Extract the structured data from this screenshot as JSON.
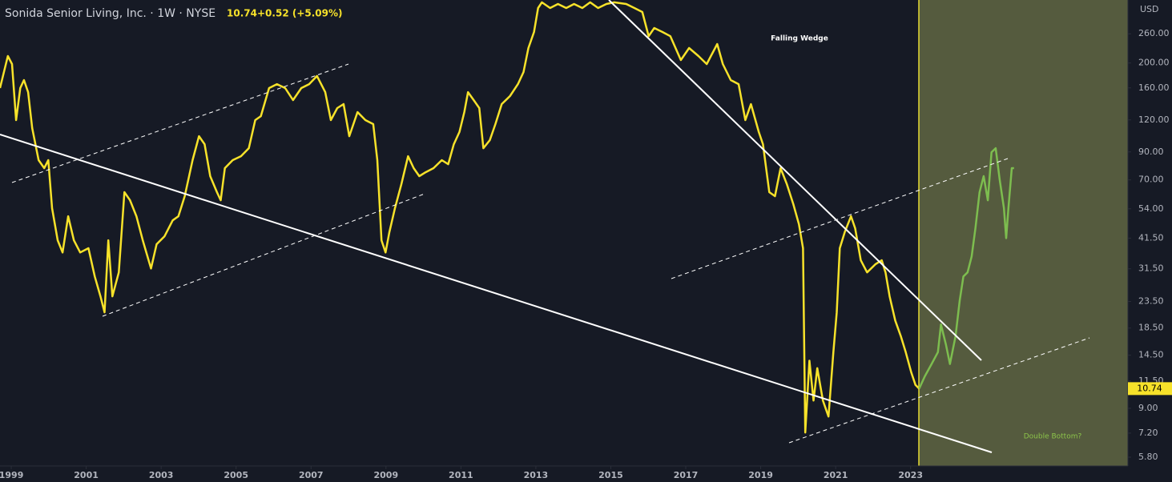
{
  "chart_data": {
    "type": "line",
    "title": "Sonida Senior Living, Inc. · 1W · NYSE",
    "last_price": 10.74,
    "change_label": "+0.52 (+5.09%)",
    "unit": "USD",
    "annotations": [
      "Falling Wedge",
      "Double Bottom?"
    ],
    "ylog": true,
    "xlim": [
      1998.7,
      2028.8
    ],
    "ylim": [
      5.36,
      352.3
    ],
    "xticks": [
      1999,
      2001,
      2003,
      2005,
      2007,
      2009,
      2011,
      2013,
      2015,
      2017,
      2019,
      2021,
      2023
    ],
    "yticks": [
      {
        "value": 5.8,
        "label": "5.80"
      },
      {
        "value": 7.2,
        "label": "7.20"
      },
      {
        "value": 9,
        "label": "9.00"
      },
      {
        "value": 11.5,
        "label": "11.50"
      },
      {
        "value": 14.5,
        "label": "14.50"
      },
      {
        "value": 18.5,
        "label": "18.50"
      },
      {
        "value": 23.5,
        "label": "23.50"
      },
      {
        "value": 31.5,
        "label": "31.50"
      },
      {
        "value": 41.5,
        "label": "41.50"
      },
      {
        "value": 54,
        "label": "54.00"
      },
      {
        "value": 70,
        "label": "70.00"
      },
      {
        "value": 90,
        "label": "90.00"
      },
      {
        "value": 120,
        "label": "120.00"
      },
      {
        "value": 160,
        "label": "160.00"
      },
      {
        "value": 200,
        "label": "200.00"
      },
      {
        "value": 260,
        "label": "260.00"
      }
    ],
    "series": [
      {
        "color": "#f7e22a",
        "x": [
          1998.7,
          1998.91,
          1999.02,
          1999.13,
          1999.24,
          1999.34,
          1999.45,
          1999.56,
          1999.73,
          1999.88,
          1999.99,
          2000.09,
          2000.24,
          2000.37,
          2000.52,
          2000.67,
          2000.84,
          2001.06,
          2001.23,
          2001.38,
          2001.49,
          2001.59,
          2001.7,
          2001.87,
          2002.02,
          2002.17,
          2002.34,
          2002.51,
          2002.73,
          2002.88,
          2003.09,
          2003.31,
          2003.46,
          2003.63,
          2003.84,
          2004.01,
          2004.16,
          2004.31,
          2004.49,
          2004.59,
          2004.7,
          2004.91,
          2005.13,
          2005.34,
          2005.51,
          2005.66,
          2005.88,
          2006.09,
          2006.31,
          2006.52,
          2006.74,
          2006.95,
          2007.16,
          2007.38,
          2007.53,
          2007.7,
          2007.87,
          2008.02,
          2008.24,
          2008.45,
          2008.66,
          2008.77,
          2008.88,
          2008.99,
          2009.09,
          2009.24,
          2009.41,
          2009.59,
          2009.74,
          2009.89,
          2010.06,
          2010.27,
          2010.49,
          2010.66,
          2010.81,
          2010.96,
          2011.09,
          2011.19,
          2011.34,
          2011.49,
          2011.6,
          2011.77,
          2011.92,
          2012.09,
          2012.31,
          2012.52,
          2012.67,
          2012.8,
          2012.95,
          2013.06,
          2013.16,
          2013.38,
          2013.59,
          2013.81,
          2014.02,
          2014.24,
          2014.45,
          2014.66,
          2014.88,
          2015.09,
          2015.41,
          2015.63,
          2015.84,
          2016.01,
          2016.16,
          2016.38,
          2016.59,
          2016.87,
          2017.09,
          2017.34,
          2017.56,
          2017.84,
          2017.99,
          2018.2,
          2018.41,
          2018.59,
          2018.74,
          2018.95,
          2019.06,
          2019.23,
          2019.38,
          2019.53,
          2019.7,
          2019.87,
          2020.02,
          2020.13,
          2020.19,
          2020.3,
          2020.41,
          2020.51,
          2020.66,
          2020.81,
          2020.94,
          2021.03,
          2021.11,
          2021.24,
          2021.41,
          2021.52,
          2021.67,
          2021.84,
          2022.06,
          2022.23,
          2022.33,
          2022.44,
          2022.59,
          2022.74,
          2022.87,
          2023.02,
          2023.13,
          2023.23
        ],
        "values": [
          159.7,
          212.9,
          198.2,
          119.8,
          159.7,
          171.6,
          154,
          111.5,
          83.6,
          77.8,
          83.6,
          54.3,
          40.7,
          36.5,
          50.5,
          40.7,
          36.5,
          37.9,
          29.4,
          24.6,
          21.3,
          40.7,
          24.6,
          30.5,
          62.7,
          58.3,
          50.5,
          40.7,
          31.6,
          39.3,
          42.2,
          48.7,
          50.5,
          60.5,
          83.6,
          103.7,
          96.5,
          72.4,
          62.7,
          58.3,
          77.8,
          83.6,
          86.6,
          93.1,
          119.8,
          124.1,
          159.7,
          165.5,
          159.7,
          143.4,
          159.7,
          165.5,
          178,
          154,
          119.8,
          133.4,
          138.3,
          103.7,
          128.7,
          119.8,
          115.6,
          83.6,
          40.7,
          36.5,
          43.7,
          54.3,
          67.3,
          86.6,
          77.8,
          72.4,
          75,
          77.8,
          83.6,
          80.6,
          96.5,
          107.6,
          128.7,
          154,
          143.4,
          133.4,
          93.1,
          100,
          115.6,
          138.3,
          148.6,
          165.5,
          184.4,
          228.8,
          264.2,
          327.9,
          345,
          327.9,
          339.9,
          327.9,
          339.9,
          327.9,
          345,
          327.9,
          339.9,
          345,
          339.9,
          327.9,
          316.3,
          254.6,
          274,
          264.2,
          254.6,
          205.4,
          228.8,
          212.9,
          198.2,
          237.2,
          198.2,
          171.6,
          165.5,
          119.8,
          138.3,
          107.6,
          96.5,
          62.7,
          60.5,
          77.8,
          67.3,
          56.3,
          47.0,
          37.9,
          7.24,
          13.8,
          9.65,
          12.9,
          9.65,
          8.36,
          14.9,
          21.3,
          37.9,
          43.7,
          50.5,
          45.3,
          34,
          30.5,
          32.8,
          34,
          30.5,
          24.6,
          19.8,
          17.2,
          14.9,
          12.4,
          11.1,
          10.74
        ]
      },
      {
        "color": "#7dbd4f",
        "x": [
          2023.23,
          2023.38,
          2023.56,
          2023.73,
          2023.81,
          2023.94,
          2024.05,
          2024.2,
          2024.31,
          2024.41,
          2024.52,
          2024.63,
          2024.73,
          2024.84,
          2024.95,
          2025.06,
          2025.16,
          2025.27,
          2025.38,
          2025.49,
          2025.55,
          2025.61,
          2025.7,
          2025.76
        ],
        "values": [
          10.74,
          12.0,
          13.4,
          14.9,
          19.1,
          16.0,
          13.4,
          17.2,
          23.7,
          29.4,
          30.5,
          35.2,
          45.3,
          62.7,
          72.4,
          58.3,
          89.8,
          93.1,
          69.8,
          54.3,
          41.5,
          54.3,
          77.8,
          77.8
        ]
      }
    ]
  }
}
